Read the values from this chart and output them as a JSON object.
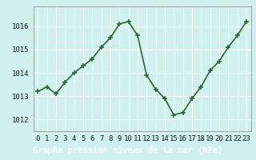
{
  "x": [
    0,
    1,
    2,
    3,
    4,
    5,
    6,
    7,
    8,
    9,
    10,
    11,
    12,
    13,
    14,
    15,
    16,
    17,
    18,
    19,
    20,
    21,
    22,
    23
  ],
  "y": [
    1013.2,
    1013.4,
    1013.1,
    1013.6,
    1014.0,
    1014.3,
    1014.6,
    1015.1,
    1015.5,
    1016.1,
    1016.2,
    1015.6,
    1013.9,
    1013.3,
    1012.9,
    1012.2,
    1012.3,
    1012.9,
    1013.4,
    1014.1,
    1014.5,
    1015.1,
    1015.6,
    1016.2
  ],
  "line_color": "#2d6a2d",
  "marker": "+",
  "marker_size": 4,
  "linewidth": 1.2,
  "bg_color": "#cff0ee",
  "footer_bg_color": "#3a9090",
  "grid_color": "#ffffff",
  "xlabel": "Graphe pression niveau de la mer (hPa)",
  "xlabel_fontsize": 7.5,
  "xlabel_color": "#ffffff",
  "tick_label_color": "#1a1a1a",
  "tick_fontsize": 6.5,
  "ylim": [
    1011.5,
    1016.85
  ],
  "yticks": [
    1012,
    1013,
    1014,
    1015,
    1016
  ],
  "xticks": [
    0,
    1,
    2,
    3,
    4,
    5,
    6,
    7,
    8,
    9,
    10,
    11,
    12,
    13,
    14,
    15,
    16,
    17,
    18,
    19,
    20,
    21,
    22,
    23
  ]
}
